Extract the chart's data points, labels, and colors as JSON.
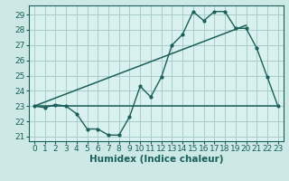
{
  "title": "",
  "xlabel": "Humidex (Indice chaleur)",
  "ylabel": "",
  "background_color": "#cce9e5",
  "plot_bg_color": "#daf2ef",
  "grid_color": "#aaccc8",
  "line_color": "#1a5f5a",
  "outer_bg": "#cce9e5",
  "xlim": [
    -0.5,
    23.5
  ],
  "ylim": [
    20.7,
    29.6
  ],
  "yticks": [
    21,
    22,
    23,
    24,
    25,
    26,
    27,
    28,
    29
  ],
  "xticks": [
    0,
    1,
    2,
    3,
    4,
    5,
    6,
    7,
    8,
    9,
    10,
    11,
    12,
    13,
    14,
    15,
    16,
    17,
    18,
    19,
    20,
    21,
    22,
    23
  ],
  "series1_x": [
    0,
    1,
    2,
    3,
    4,
    5,
    6,
    7,
    8,
    9,
    10,
    11,
    12,
    13,
    14,
    15,
    16,
    17,
    18,
    19,
    20,
    21,
    22,
    23
  ],
  "series1_y": [
    23.0,
    22.9,
    23.1,
    23.0,
    22.5,
    21.5,
    21.5,
    21.1,
    21.1,
    22.3,
    24.3,
    23.6,
    24.9,
    27.0,
    27.7,
    29.2,
    28.6,
    29.2,
    29.2,
    28.1,
    28.1,
    26.8,
    24.9,
    23.0
  ],
  "series2_x": [
    0,
    23
  ],
  "series2_y": [
    23.0,
    23.0
  ],
  "series3_x": [
    0,
    20
  ],
  "series3_y": [
    23.0,
    28.3
  ],
  "font_size": 7,
  "tick_font_size": 6.5,
  "xlabel_font_size": 7.5
}
